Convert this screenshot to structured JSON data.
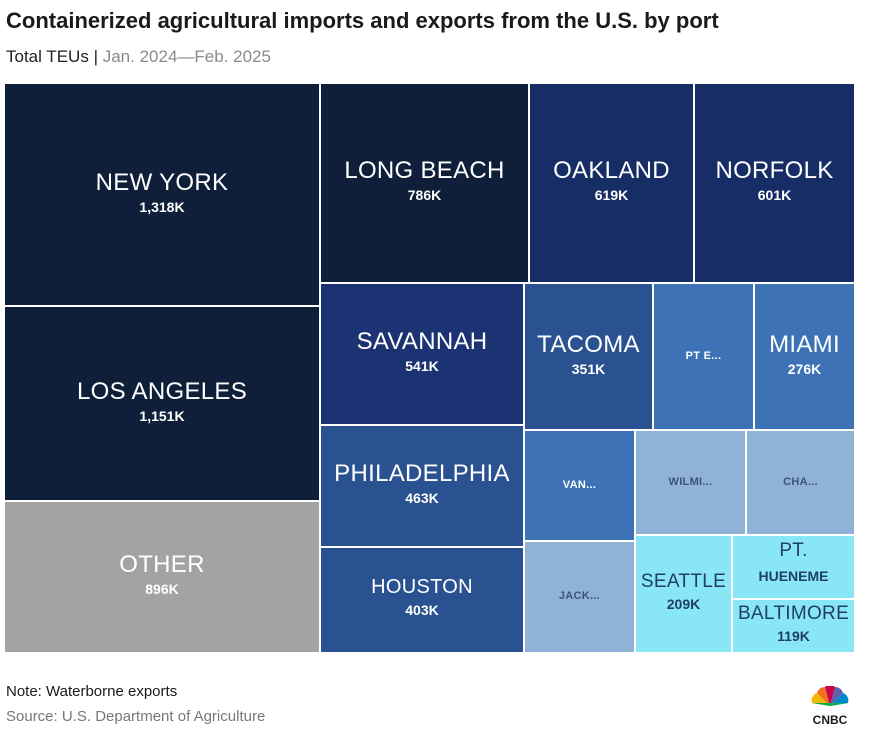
{
  "title": "Containerized agricultural imports and exports from the U.S. by port",
  "subtitle": {
    "measure": "Total TEUs",
    "separator": "|",
    "period": "Jan. 2024—Feb. 2025"
  },
  "note": "Note: Waterborne exports",
  "source": "Source: U.S. Department of Agriculture",
  "logo_text": "CNBC",
  "chart_data": {
    "type": "treemap",
    "unit": "TEUs",
    "items": [
      {
        "name": "NEW YORK",
        "value_label": "1,318K",
        "value": 1318,
        "color": "#0f1f3a"
      },
      {
        "name": "LOS ANGELES",
        "value_label": "1,151K",
        "value": 1151,
        "color": "#0f1f3a"
      },
      {
        "name": "OTHER",
        "value_label": "896K",
        "value": 896,
        "color": "#a3a3a3"
      },
      {
        "name": "LONG BEACH",
        "value_label": "786K",
        "value": 786,
        "color": "#0f1f3a"
      },
      {
        "name": "OAKLAND",
        "value_label": "619K",
        "value": 619,
        "color": "#172d66"
      },
      {
        "name": "NORFOLK",
        "value_label": "601K",
        "value": 601,
        "color": "#172d66"
      },
      {
        "name": "SAVANNAH",
        "value_label": "541K",
        "value": 541,
        "color": "#1b3372"
      },
      {
        "name": "PHILADELPHIA",
        "value_label": "463K",
        "value": 463,
        "color": "#2a5291"
      },
      {
        "name": "HOUSTON",
        "value_label": "403K",
        "value": 403,
        "color": "#2a5291"
      },
      {
        "name": "TACOMA",
        "value_label": "351K",
        "value": 351,
        "color": "#2a5291"
      },
      {
        "name": "PT E...",
        "value_label": "",
        "color": "#3d73b6"
      },
      {
        "name": "MIAMI",
        "value_label": "276K",
        "value": 276,
        "color": "#3d73b6"
      },
      {
        "name": "VAN...",
        "value_label": "",
        "color": "#3d73b6"
      },
      {
        "name": "WILMI...",
        "value_label": "",
        "color": "#8fb2d6"
      },
      {
        "name": "CHA...",
        "value_label": "",
        "color": "#8fb2d6"
      },
      {
        "name": "JACK...",
        "value_label": "",
        "color": "#8fb2d6"
      },
      {
        "name": "SEATTLE",
        "value_label": "209K",
        "value": 209,
        "color": "#88e6f5"
      },
      {
        "name": "PT.",
        "name2": "HUENEME",
        "value_label": "",
        "color": "#88e6f5"
      },
      {
        "name": "BALTIMORE",
        "value_label": "119K",
        "value": 119,
        "color": "#88e6f5"
      }
    ]
  }
}
